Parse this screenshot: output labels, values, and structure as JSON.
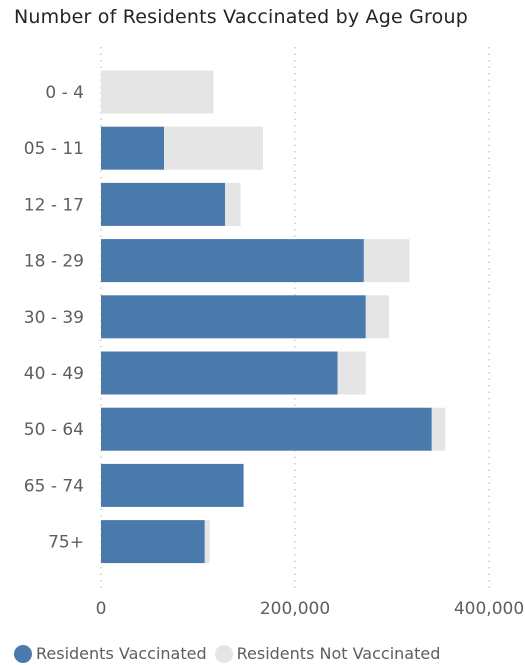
{
  "chart_data": {
    "type": "bar",
    "orientation": "horizontal",
    "stacked": true,
    "title": "Number of Residents Vaccinated by Age Group",
    "categories": [
      "0 - 4",
      "05 - 11",
      "12 - 17",
      "18 - 29",
      "30 - 39",
      "40 - 49",
      "50 - 64",
      "65 - 74",
      "75+"
    ],
    "series": [
      {
        "name": "Residents Vaccinated",
        "color": "#4a7aab",
        "values": [
          0,
          65000,
          128000,
          271000,
          273000,
          244000,
          341000,
          147000,
          107000
        ]
      },
      {
        "name": "Residents Not Vaccinated",
        "color": "#e5e5e5",
        "values": [
          116000,
          102000,
          16000,
          47000,
          24000,
          29000,
          14000,
          0,
          5000
        ]
      }
    ],
    "xlim": [
      0,
      400000
    ],
    "xticks": [
      0,
      200000,
      400000
    ],
    "xtick_labels": [
      "0",
      "200,000",
      "400,000"
    ],
    "grid": "vertical dotted",
    "legend_position": "bottom-left"
  }
}
